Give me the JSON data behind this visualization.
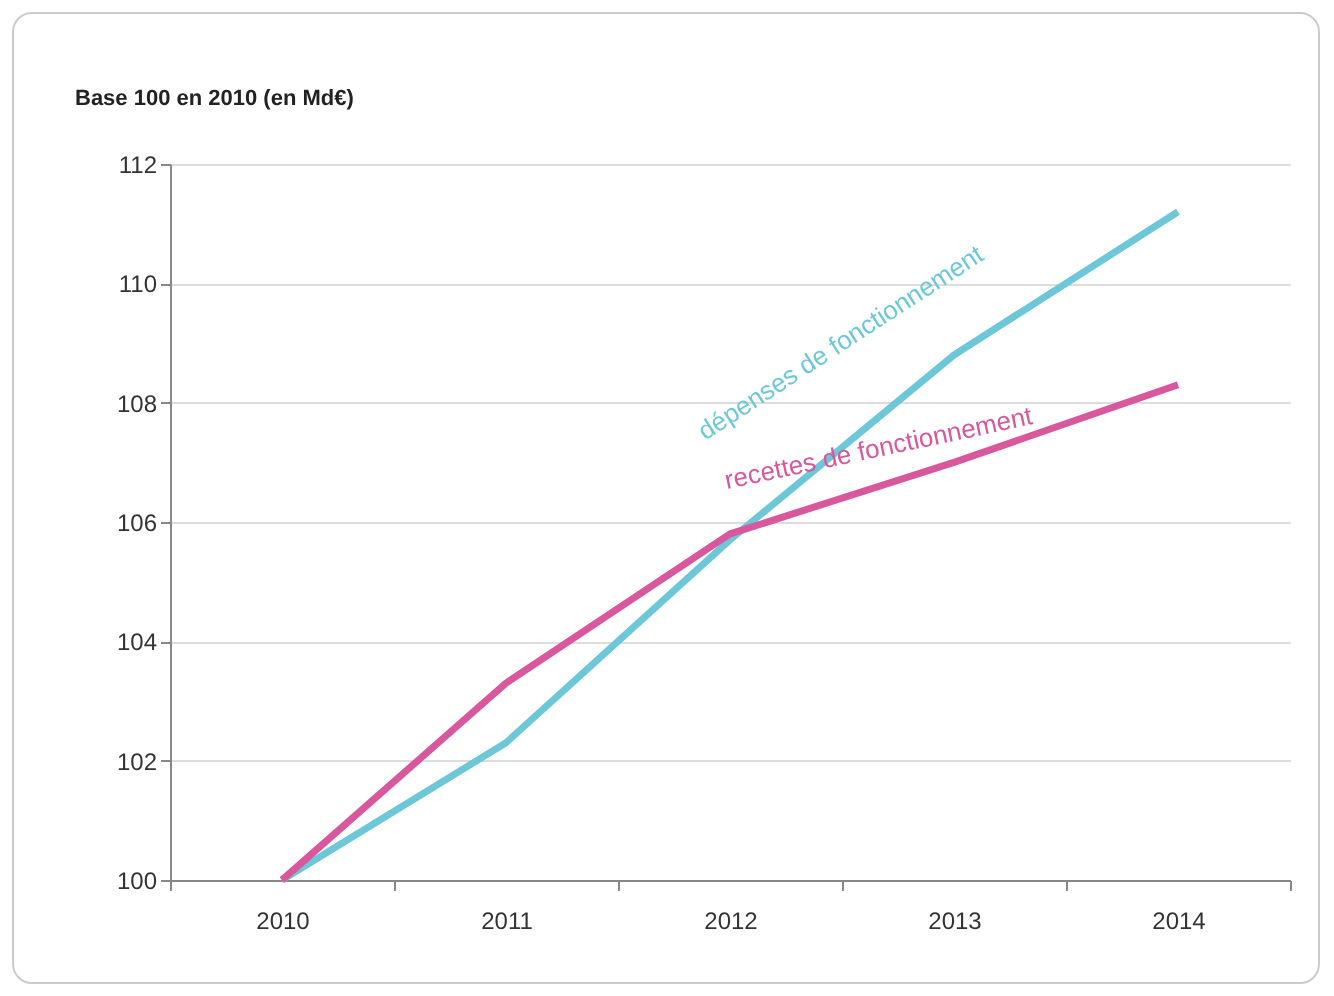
{
  "chart_data": {
    "type": "line",
    "ylabel": "Base 100 en 2010 (en Md€)",
    "categories": [
      "2010",
      "2011",
      "2012",
      "2013",
      "2014"
    ],
    "series": [
      {
        "name": "dépenses de fonctionnement",
        "color": "#6cc8d8",
        "values": [
          100,
          102.3,
          105.7,
          108.8,
          111.2
        ]
      },
      {
        "name": "recettes de fonctionnement",
        "color": "#d9579c",
        "values": [
          100,
          103.3,
          105.8,
          107.0,
          108.3
        ]
      }
    ],
    "ylim": [
      100,
      112
    ],
    "yticks": [
      100,
      102,
      104,
      106,
      108,
      110,
      112
    ],
    "grid": "y",
    "legend": false,
    "marker": "none",
    "line_style": "solid"
  }
}
